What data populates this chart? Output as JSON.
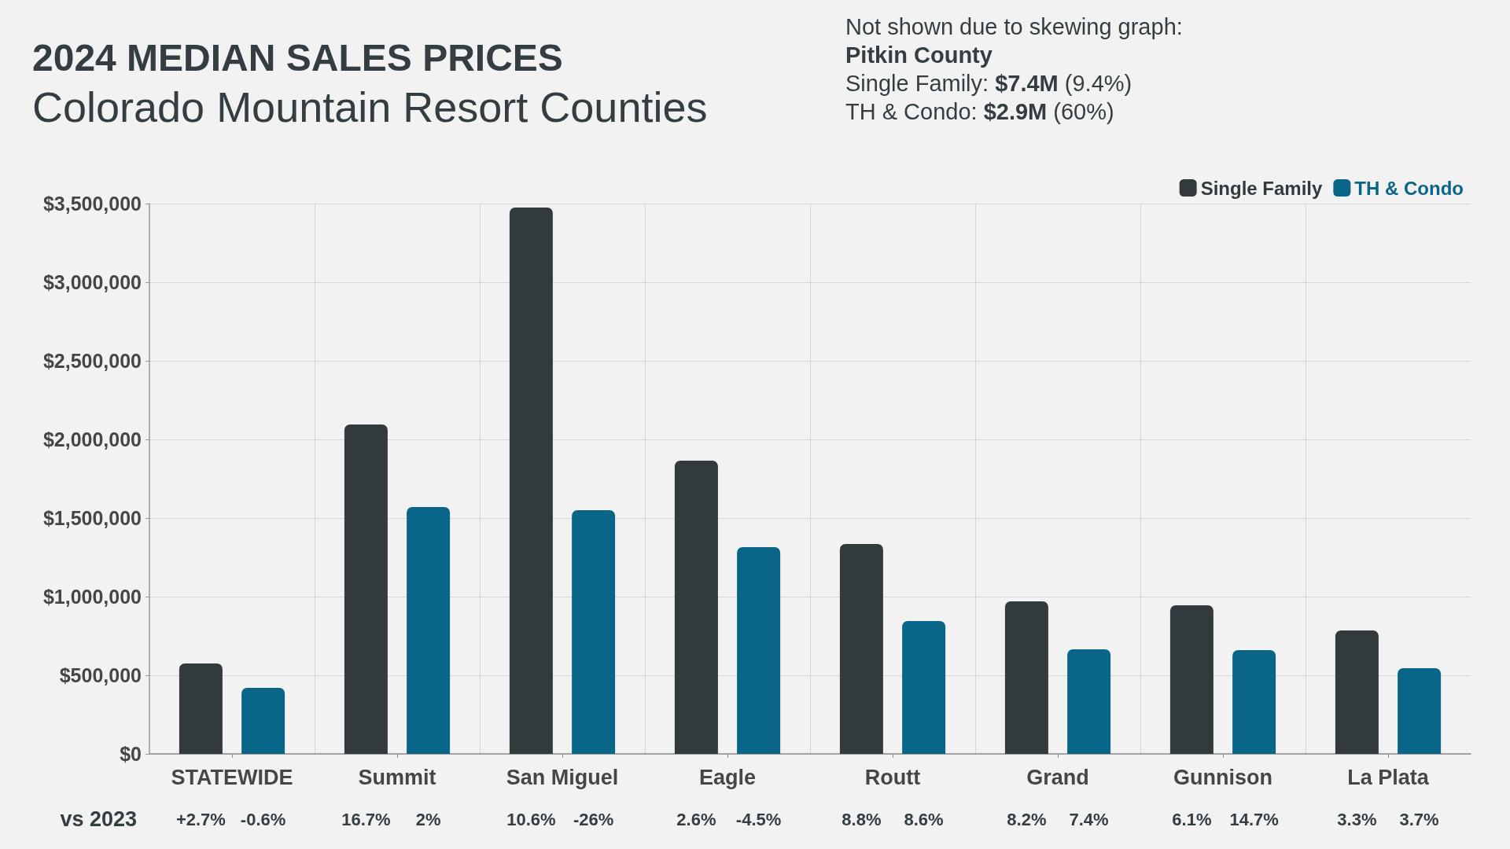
{
  "chart_data": {
    "type": "bar",
    "title": "2024 MEDIAN SALES PRICES",
    "subtitle": "Colorado Mountain Resort Counties",
    "categories": [
      "STATEWIDE",
      "Summit",
      "San Miguel",
      "Eagle",
      "Routt",
      "Grand",
      "Gunnison",
      "La Plata"
    ],
    "series": [
      {
        "name": "Single Family",
        "color": "#323a3d",
        "values": [
          575000,
          2095000,
          3475000,
          1865000,
          1335000,
          970000,
          945000,
          785000
        ]
      },
      {
        "name": "TH & Condo",
        "color": "#0a6688",
        "values": [
          420000,
          1570000,
          1550000,
          1315000,
          845000,
          665000,
          660000,
          545000
        ]
      }
    ],
    "ylim": [
      0,
      3500000
    ],
    "yticks": [
      {
        "value": 0,
        "label": "$0"
      },
      {
        "value": 500000,
        "label": "$500,000"
      },
      {
        "value": 1000000,
        "label": "$1,000,000"
      },
      {
        "value": 1500000,
        "label": "$1,500,000"
      },
      {
        "value": 2000000,
        "label": "$2,000,000"
      },
      {
        "value": 2500000,
        "label": "$2,500,000"
      },
      {
        "value": 3000000,
        "label": "$3,000,000"
      },
      {
        "value": 3500000,
        "label": "$3,500,000"
      }
    ],
    "grid": true,
    "legend": "top right",
    "annotations": [
      "Not shown due to skewing graph:",
      "Pitkin County",
      "Single Family: $7.4M (9.4%)",
      "TH & Condo: $2.9M (60%)",
      "vs 2023",
      "+2.7%",
      "-0.6%",
      "16.7%",
      "2%",
      "10.6%",
      "-26%",
      "2.6%",
      "-4.5%",
      "8.8%",
      "8.6%",
      "8.2%",
      "7.4%",
      "6.1%",
      "14.7%",
      "3.3%",
      "3.7%"
    ]
  }
}
